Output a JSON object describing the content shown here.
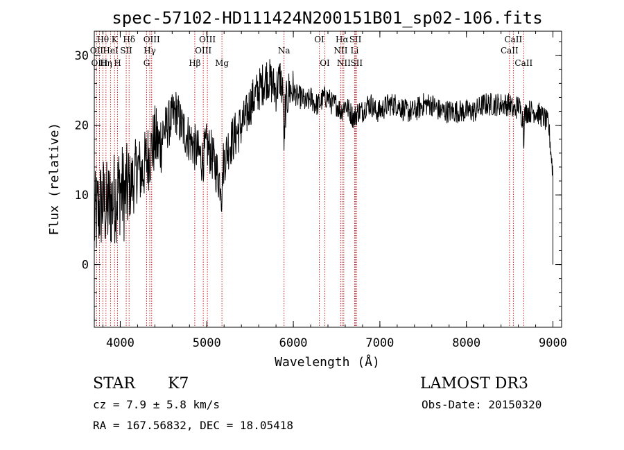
{
  "chart_data": {
    "type": "line",
    "title": "spec-57102-HD111424N200151B01_sp02-106.fits",
    "xlabel": "Wavelength (Å)",
    "ylabel": "Flux (relative)",
    "xlim": [
      3700,
      9100
    ],
    "ylim": [
      -9,
      33.5
    ],
    "x_ticks": [
      4000,
      5000,
      6000,
      7000,
      8000,
      9000
    ],
    "y_ticks": [
      0,
      10,
      20,
      30
    ],
    "grid": false,
    "series": [
      {
        "x": [
          3700,
          3750,
          3800,
          3850,
          3900,
          3950,
          4000,
          4050,
          4100,
          4150,
          4200,
          4250,
          4300,
          4350,
          4400,
          4450,
          4500,
          4550,
          4600,
          4650,
          4700,
          4750,
          4800,
          4850,
          4900,
          4950,
          5000,
          5050,
          5100,
          5150,
          5200,
          5250,
          5300,
          5350,
          5400,
          5450,
          5500,
          5550,
          5600,
          5650,
          5700,
          5750,
          5800,
          5850,
          5900,
          5950,
          6000,
          6050,
          6100,
          6150,
          6200,
          6250,
          6300,
          6350,
          6400,
          6450,
          6500,
          6550,
          6600,
          6650,
          6700,
          6750,
          6800,
          6850,
          6900,
          6950,
          7000,
          7100,
          7200,
          7300,
          7400,
          7500,
          7600,
          7700,
          7800,
          7900,
          8000,
          8100,
          8200,
          8300,
          8400,
          8500,
          8550,
          8600,
          8650,
          8700,
          8800,
          8900,
          8950,
          9000
        ],
        "y": [
          6,
          8,
          9,
          8,
          9,
          10,
          11,
          10,
          11,
          12,
          14,
          13,
          15,
          16,
          18,
          17,
          19,
          20,
          21,
          22,
          20,
          19,
          18,
          17,
          16,
          15,
          17,
          16,
          14,
          12,
          15,
          17,
          18,
          19,
          20,
          21,
          23,
          24,
          25,
          26,
          27,
          26,
          25,
          27,
          22,
          25,
          25,
          24,
          24,
          23,
          24,
          23,
          23,
          24,
          24,
          23,
          23,
          22,
          23,
          22,
          21,
          22,
          22,
          23,
          23,
          22,
          22,
          23,
          23,
          22,
          22,
          23,
          23,
          22,
          22,
          22,
          22,
          22,
          23,
          23,
          23,
          23,
          22,
          23,
          21,
          22,
          22,
          21,
          20,
          13
        ]
      }
    ],
    "lines": [
      {
        "name": "Hθ",
        "wave": 3798,
        "row": 0
      },
      {
        "name": "OII",
        "wave": 3727,
        "row": 1
      },
      {
        "name": "OIII",
        "wave": 3760,
        "row": 2
      },
      {
        "name": "Hη",
        "wave": 3835,
        "row": 2
      },
      {
        "name": "K",
        "wave": 3934,
        "row": 0
      },
      {
        "name": "HeI",
        "wave": 3889,
        "row": 1
      },
      {
        "name": "H",
        "wave": 3969,
        "row": 2
      },
      {
        "name": "Hδ",
        "wave": 4102,
        "row": 0
      },
      {
        "name": "SII",
        "wave": 4069,
        "row": 1
      },
      {
        "name": "OIII",
        "wave": 4363,
        "row": 0
      },
      {
        "name": "Hγ",
        "wave": 4341,
        "row": 1
      },
      {
        "name": "G",
        "wave": 4305,
        "row": 2
      },
      {
        "name": "Hβ",
        "wave": 4861,
        "row": 2
      },
      {
        "name": "OIII",
        "wave": 5007,
        "row": 0
      },
      {
        "name": "OIII",
        "wave": 4959,
        "row": 1
      },
      {
        "name": "Mg",
        "wave": 5175,
        "row": 2
      },
      {
        "name": "Na",
        "wave": 5893,
        "row": 1
      },
      {
        "name": "OI",
        "wave": 6300,
        "row": 0
      },
      {
        "name": "OI",
        "wave": 6364,
        "row": 2
      },
      {
        "name": "Hα",
        "wave": 6563,
        "row": 0
      },
      {
        "name": "NII",
        "wave": 6548,
        "row": 1
      },
      {
        "name": "NII",
        "wave": 6583,
        "row": 2
      },
      {
        "name": "SII",
        "wave": 6717,
        "row": 0
      },
      {
        "name": "Li",
        "wave": 6708,
        "row": 1
      },
      {
        "name": "SII",
        "wave": 6731,
        "row": 2
      },
      {
        "name": "CaII",
        "wave": 8542,
        "row": 0
      },
      {
        "name": "CaII",
        "wave": 8498,
        "row": 1
      },
      {
        "name": "CaII",
        "wave": 8662,
        "row": 2
      }
    ]
  },
  "info": {
    "class": "STAR",
    "subclass": "K7",
    "survey": "LAMOST DR3",
    "cz": "cz = 7.9 ± 5.8 km/s",
    "obs_date": "Obs-Date: 20150320",
    "radec": "RA = 167.56832, DEC =  18.05418"
  },
  "colors": {
    "spectrum": "#000000",
    "line_markers": "#cc0000"
  }
}
